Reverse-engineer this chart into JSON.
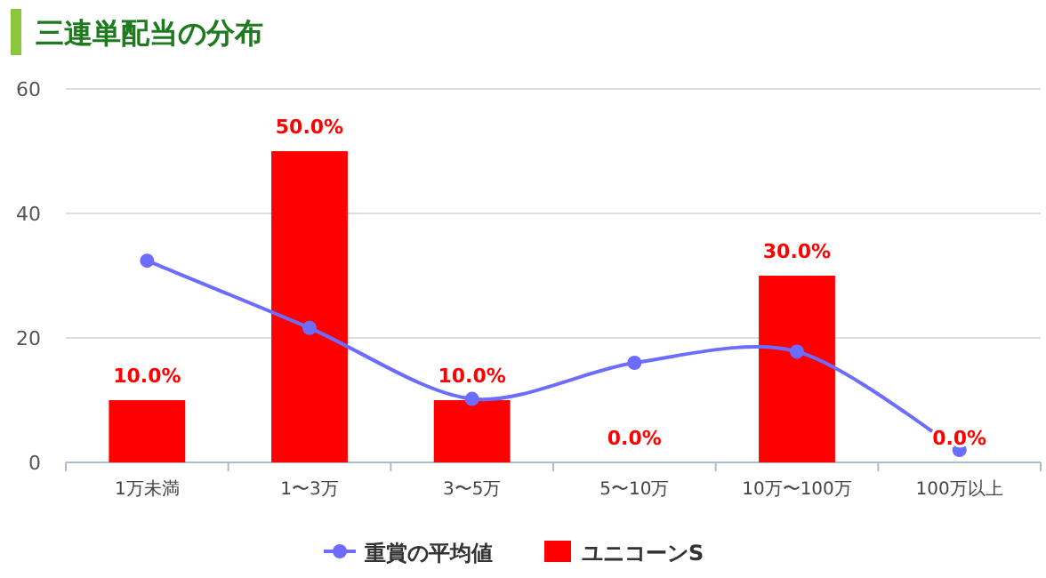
{
  "chart_data": {
    "type": "bar",
    "title": "三連単配当の分布",
    "categories": [
      "1万未満",
      "1〜3万",
      "3〜5万",
      "5〜10万",
      "10万〜100万",
      "100万以上"
    ],
    "series": [
      {
        "name": "重賞の平均値",
        "type": "line",
        "color": "#6c6cff",
        "values": [
          32.4,
          21.6,
          10.2,
          16.0,
          17.8,
          2.0
        ],
        "marker": "circle"
      },
      {
        "name": "ユニコーンS",
        "color": "#ff0000",
        "values": [
          10,
          50,
          10,
          0,
          30,
          0
        ],
        "value_labels": [
          "10.0%",
          "50.0%",
          "10.0%",
          "0.0%",
          "30.0%",
          "0.0%"
        ]
      }
    ],
    "ylim": [
      0,
      60
    ],
    "yticks": [
      0,
      20,
      40,
      60
    ],
    "grid": "y",
    "legend": "bottom"
  }
}
